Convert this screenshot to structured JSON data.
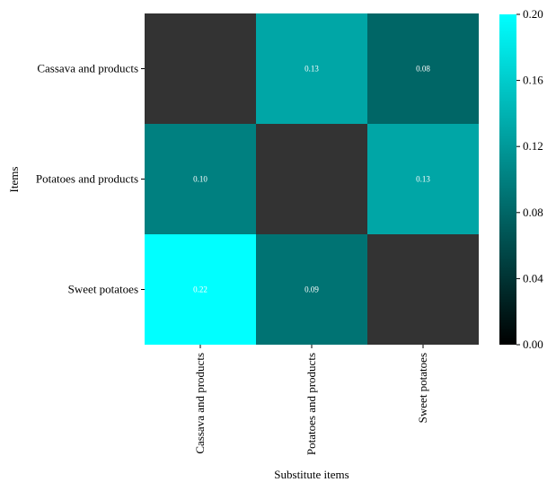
{
  "chart_data": {
    "type": "heatmap",
    "xlabel": "Substitute items",
    "ylabel": "Items",
    "x_categories": [
      "Cassava and products",
      "Potatoes and products",
      "Sweet potatoes"
    ],
    "y_categories": [
      "Cassava and products",
      "Potatoes and products",
      "Sweet potatoes"
    ],
    "values": [
      [
        null,
        0.13,
        0.08
      ],
      [
        0.1,
        null,
        0.13
      ],
      [
        0.22,
        0.09,
        null
      ]
    ],
    "cell_labels": [
      [
        "",
        "0.13",
        "0.08"
      ],
      [
        "0.10",
        "",
        "0.13"
      ],
      [
        "0.22",
        "0.09",
        ""
      ]
    ],
    "missing_color": "#333333",
    "colorscale": {
      "min": 0.0,
      "max": 0.2,
      "colors": [
        "#000000",
        "#00ffff"
      ],
      "ticks": [
        "0.00",
        "0.04",
        "0.08",
        "0.12",
        "0.16",
        "0.20"
      ]
    }
  }
}
